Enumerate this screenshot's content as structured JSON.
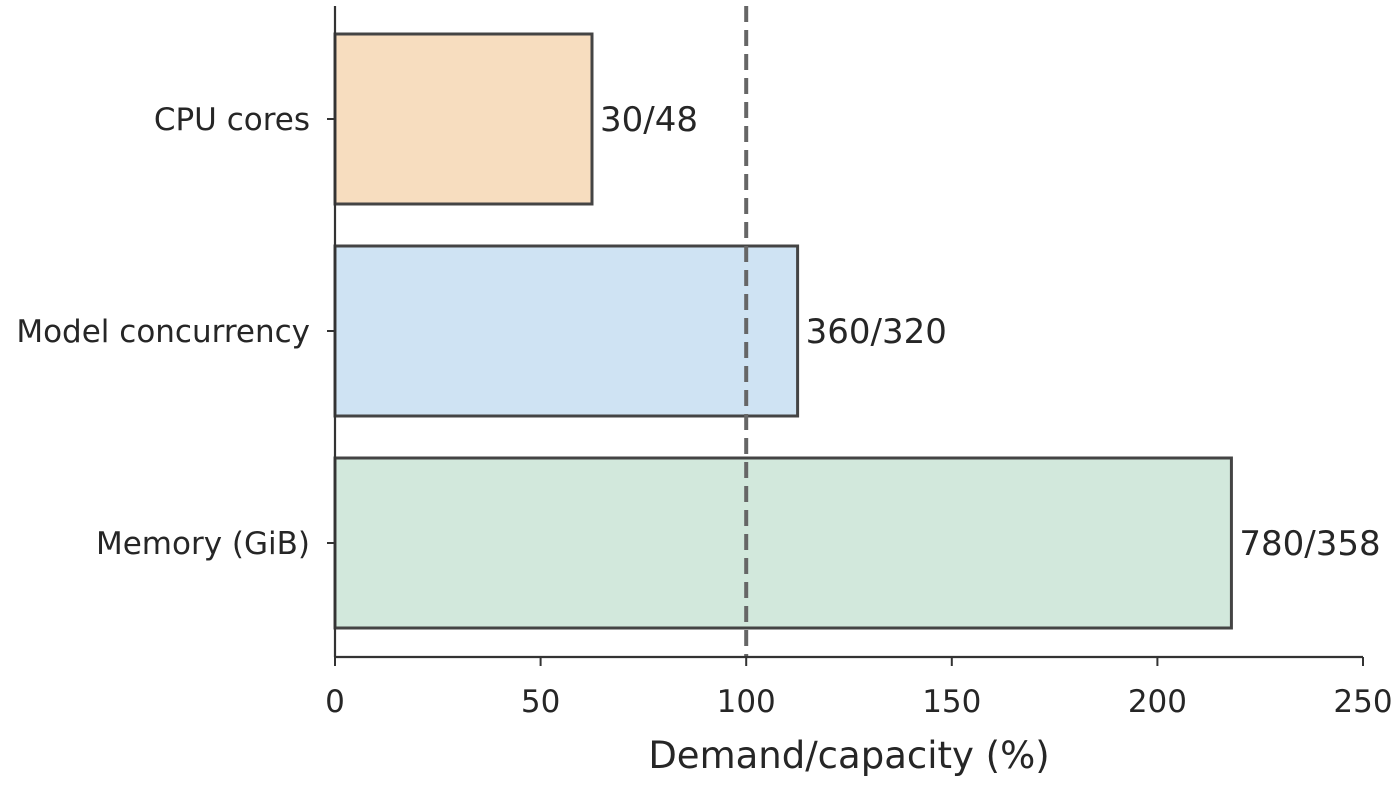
{
  "chart_data": {
    "type": "bar",
    "orientation": "horizontal",
    "title": "",
    "xlabel": "Demand/capacity (%)",
    "ylabel": "",
    "xlim": [
      0,
      250
    ],
    "x_ticks": [
      "0",
      "50",
      "100",
      "150",
      "200",
      "250"
    ],
    "x_tick_values": [
      0,
      50,
      100,
      150,
      200,
      250
    ],
    "categories": [
      "CPU cores",
      "Model concurrency",
      "Memory (GiB)"
    ],
    "values": [
      62.5,
      112.5,
      218
    ],
    "data_labels": [
      "30/48",
      "360/320",
      "780/358"
    ],
    "bar_colors": [
      "#f7ddbf",
      "#cfe3f3",
      "#d2e8dc"
    ],
    "reference_line": {
      "x": 100,
      "style": "dashed",
      "color": "#666666"
    },
    "grid": false,
    "legend": false
  }
}
